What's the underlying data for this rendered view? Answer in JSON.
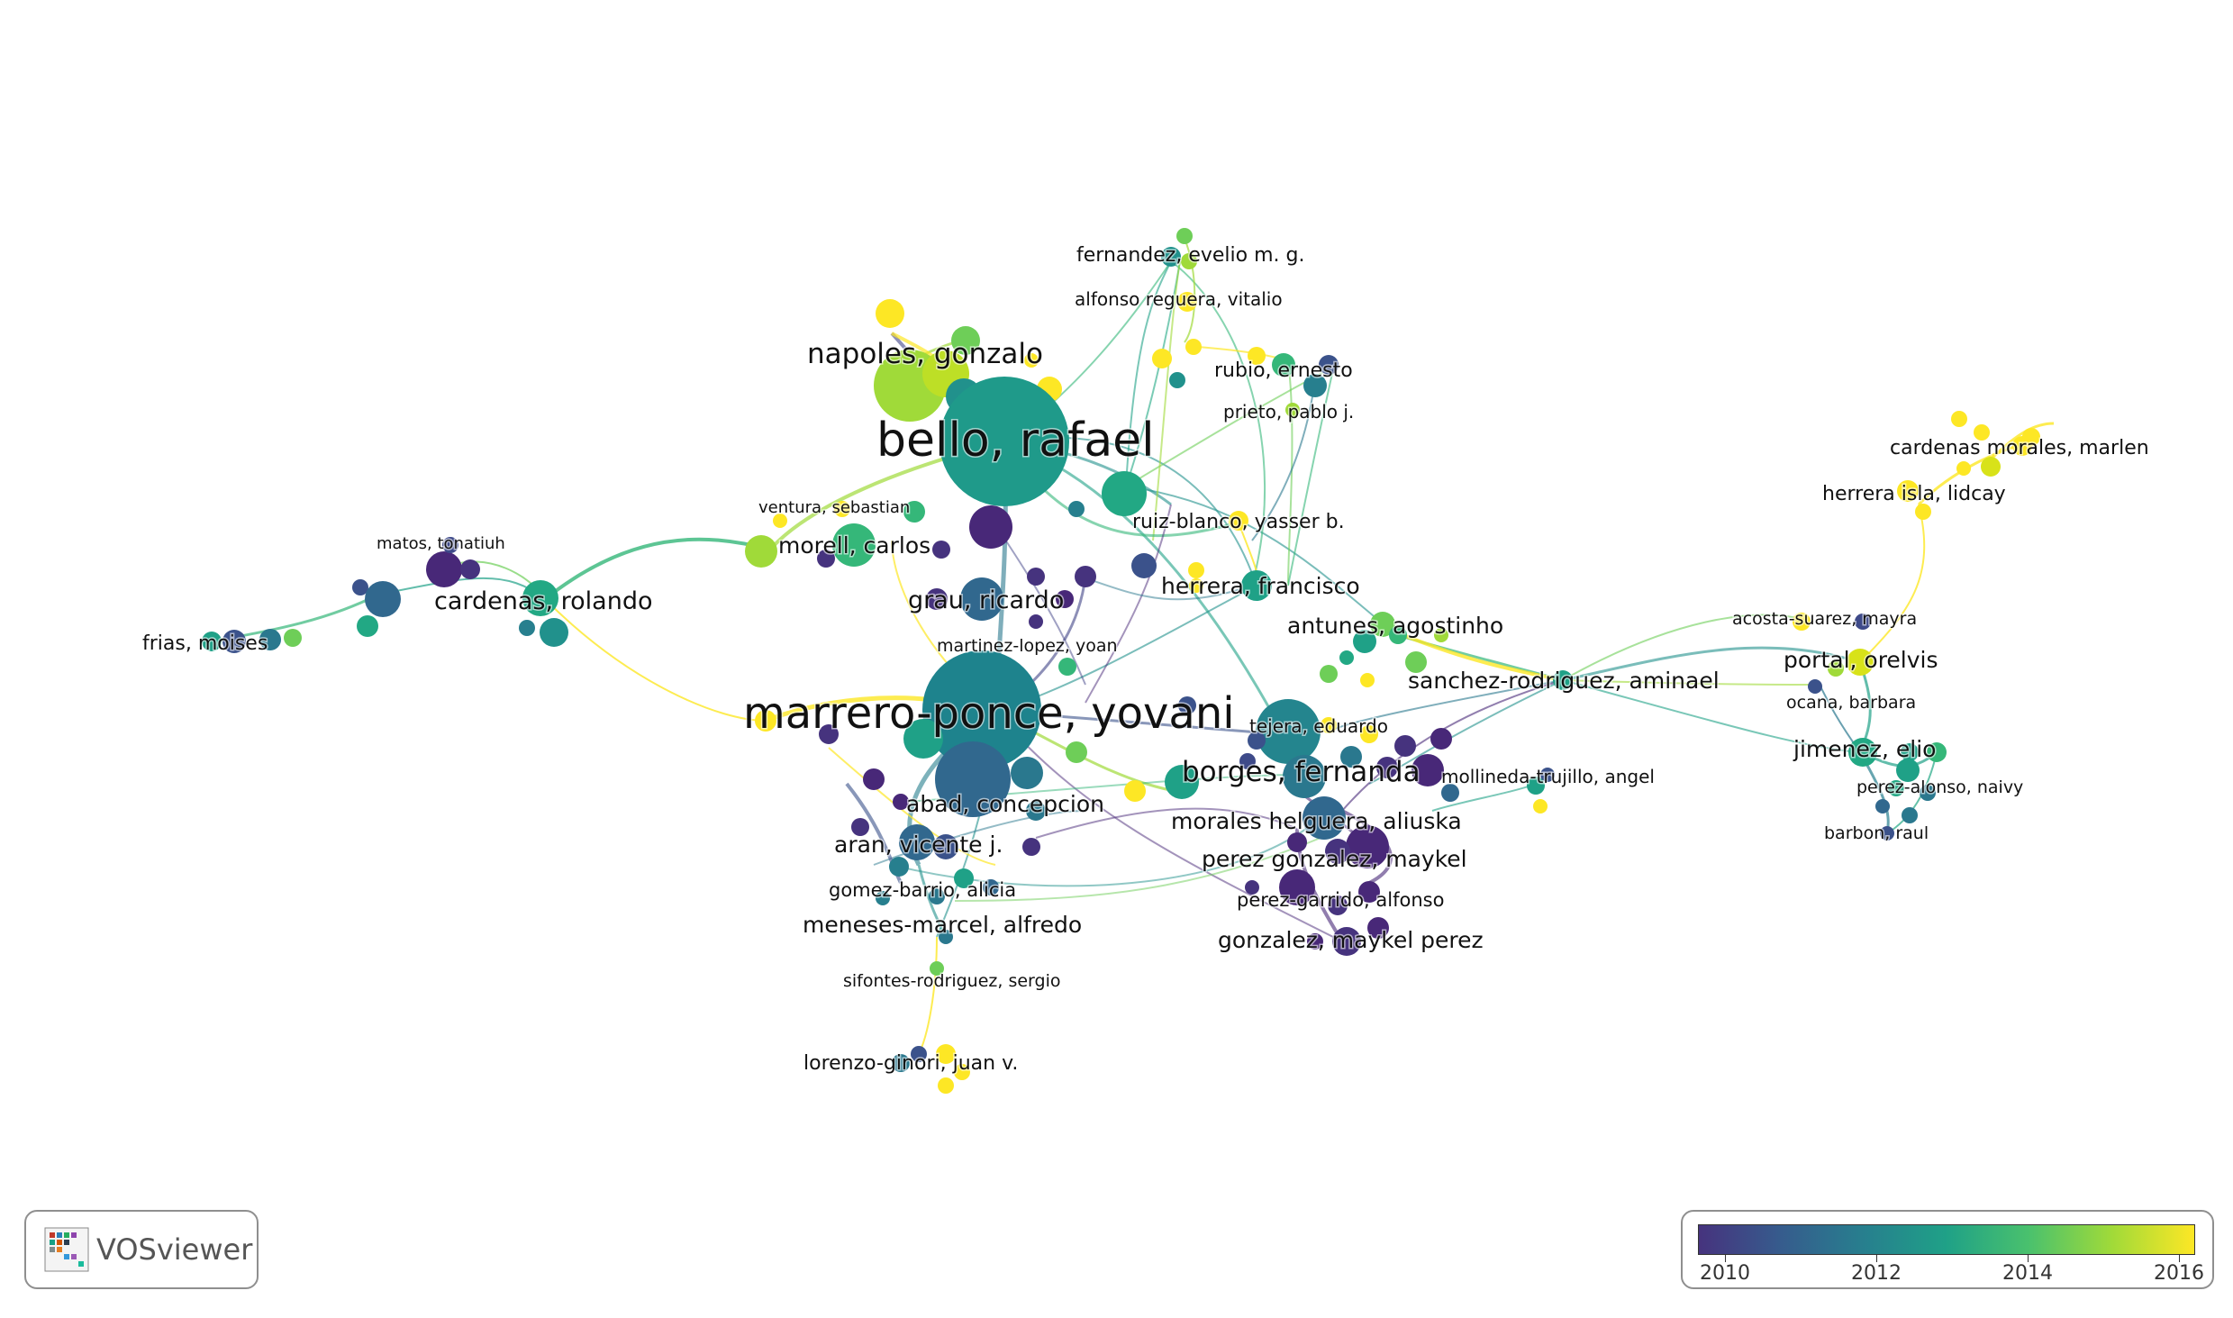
{
  "app": {
    "name": "VOSviewer"
  },
  "legend": {
    "ticks": [
      "2010",
      "2012",
      "2014",
      "2016"
    ],
    "colors": [
      "#46337e",
      "#365c8d",
      "#277f8e",
      "#1fa187",
      "#4ac16d",
      "#a0da39",
      "#fde725"
    ]
  },
  "labels": {
    "fernandez": "fernandez, evelio m. g.",
    "alfonso": "alfonso reguera, vitalio",
    "napoles": "napoles, gonzalo",
    "rubio": "rubio, ernesto",
    "prieto": "prieto, pablo j.",
    "bello": "bello, rafael",
    "cardenas_morales": "cardenas morales, marlen",
    "herrera_isla": "herrera isla, lidcay",
    "ventura": "ventura, sebastian",
    "ruiz_blanco": "ruiz-blanco, yasser b.",
    "matos": "matos, tonatiuh",
    "morell": "morell, carlos",
    "herrera_francisco": "herrera, francisco",
    "cardenas_rolando": "cardenas, rolando",
    "grau": "grau, ricardo",
    "acosta": "acosta-suarez, mayra",
    "antunes": "antunes, agostinho",
    "frias": "frias, moises",
    "martinez": "martinez-lopez, yoan",
    "portal": "portal, orelvis",
    "sanchez": "sanchez-rodriguez, aminael",
    "marrero": "marrero-ponce, yovani",
    "ocana": "ocana, barbara",
    "tejera": "tejera, eduardo",
    "jimenez": "jimenez, elio",
    "borges": "borges, fernanda",
    "mollineda": "mollineda-trujillo, angel",
    "perez_alonso": "perez-alonso, naivy",
    "abad": "abad, concepcion",
    "morales": "morales helguera, aliuska",
    "barbon": "barbon, raul",
    "aran": "aran, vicente j.",
    "perez_gonzalez": "perez gonzalez, maykel",
    "gomez": "gomez-barrio, alicia",
    "perez_garrido": "perez-garrido, alfonso",
    "meneses": "meneses-marcel, alfredo",
    "gonzalez": "gonzalez, maykel perez",
    "sifontes": "sifontes-rodriguez, sergio",
    "lorenzo": "lorenzo-ginori, juan v."
  }
}
